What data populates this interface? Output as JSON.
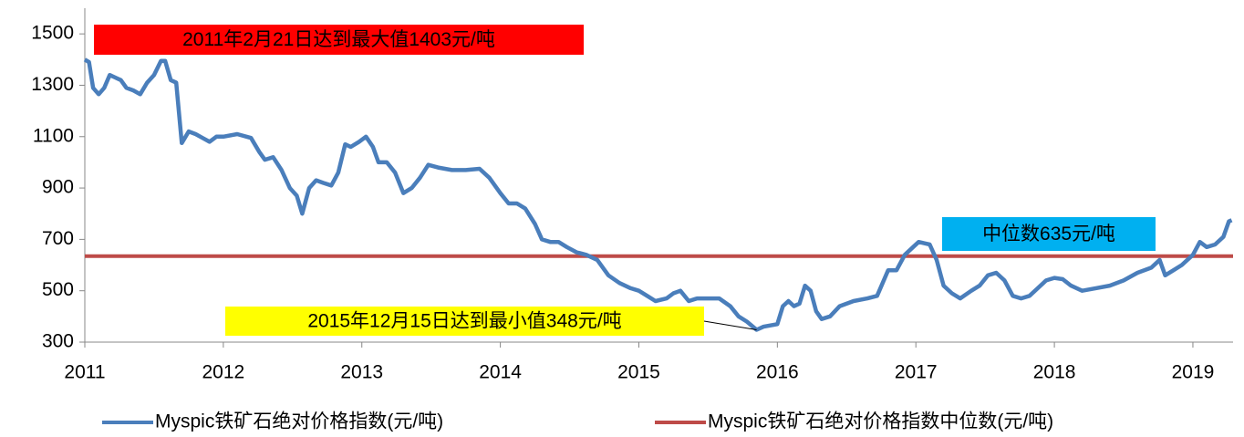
{
  "chart_data": {
    "type": "line",
    "x": [
      2011.0,
      2011.03,
      2011.06,
      2011.1,
      2011.14,
      2011.18,
      2011.22,
      2011.26,
      2011.3,
      2011.35,
      2011.4,
      2011.45,
      2011.5,
      2011.55,
      2011.58,
      2011.62,
      2011.66,
      2011.7,
      2011.75,
      2011.8,
      2011.85,
      2011.9,
      2011.95,
      2012.0,
      2012.1,
      2012.2,
      2012.26,
      2012.3,
      2012.36,
      2012.42,
      2012.48,
      2012.53,
      2012.57,
      2012.62,
      2012.67,
      2012.72,
      2012.78,
      2012.83,
      2012.88,
      2012.92,
      2012.98,
      2013.03,
      2013.08,
      2013.12,
      2013.18,
      2013.24,
      2013.3,
      2013.36,
      2013.42,
      2013.48,
      2013.55,
      2013.65,
      2013.75,
      2013.85,
      2013.92,
      2014.0,
      2014.06,
      2014.12,
      2014.18,
      2014.25,
      2014.3,
      2014.36,
      2014.42,
      2014.48,
      2014.55,
      2014.62,
      2014.7,
      2014.78,
      2014.86,
      2014.94,
      2015.0,
      2015.06,
      2015.12,
      2015.2,
      2015.25,
      2015.3,
      2015.36,
      2015.42,
      2015.5,
      2015.58,
      2015.66,
      2015.72,
      2015.78,
      2015.85,
      2015.9,
      2016.0,
      2016.04,
      2016.08,
      2016.12,
      2016.16,
      2016.2,
      2016.24,
      2016.28,
      2016.32,
      2016.38,
      2016.45,
      2016.55,
      2016.65,
      2016.72,
      2016.76,
      2016.8,
      2016.86,
      2016.92,
      2016.98,
      2017.02,
      2017.1,
      2017.15,
      2017.2,
      2017.26,
      2017.32,
      2017.4,
      2017.46,
      2017.52,
      2017.58,
      2017.64,
      2017.7,
      2017.76,
      2017.82,
      2017.88,
      2017.94,
      2018.0,
      2018.06,
      2018.12,
      2018.2,
      2018.3,
      2018.4,
      2018.5,
      2018.6,
      2018.7,
      2018.76,
      2018.8,
      2018.86,
      2018.92,
      2019.0,
      2019.05,
      2019.1,
      2019.16,
      2019.22,
      2019.26,
      2019.28
    ],
    "series": [
      {
        "name": "Myspic铁矿石绝对价格指数(元/吨)",
        "color": "#4a7ebb",
        "values": [
          1400,
          1390,
          1290,
          1265,
          1290,
          1340,
          1330,
          1320,
          1290,
          1280,
          1265,
          1310,
          1340,
          1395,
          1395,
          1320,
          1310,
          1075,
          1120,
          1110,
          1095,
          1080,
          1100,
          1100,
          1110,
          1095,
          1040,
          1010,
          1020,
          970,
          900,
          870,
          800,
          900,
          930,
          920,
          910,
          960,
          1070,
          1060,
          1080,
          1100,
          1060,
          1000,
          1000,
          960,
          880,
          900,
          940,
          990,
          980,
          970,
          970,
          975,
          940,
          880,
          840,
          840,
          820,
          760,
          700,
          690,
          690,
          670,
          650,
          640,
          620,
          560,
          530,
          510,
          500,
          480,
          460,
          470,
          490,
          500,
          460,
          470,
          470,
          470,
          440,
          400,
          380,
          348,
          360,
          370,
          440,
          460,
          440,
          450,
          520,
          500,
          420,
          390,
          400,
          440,
          460,
          470,
          480,
          530,
          580,
          580,
          640,
          670,
          690,
          680,
          620,
          520,
          490,
          470,
          500,
          520,
          560,
          570,
          540,
          480,
          470,
          480,
          510,
          540,
          550,
          545,
          520,
          500,
          510,
          520,
          540,
          570,
          590,
          620,
          560,
          580,
          600,
          640,
          690,
          670,
          680,
          710,
          770,
          775
        ]
      },
      {
        "name": "Myspic铁矿石绝对价格指数中位数(元/吨)",
        "color": "#be4b48",
        "x": [
          2011,
          2019.29
        ],
        "values": [
          635,
          635
        ]
      }
    ],
    "annotations": [
      {
        "text": "2011年2月21日达到最大值1403元/吨",
        "color": "#ff0000"
      },
      {
        "text": "2015年12月15日达到最小值348元/吨",
        "color": "#ffff00"
      },
      {
        "text": "中位数635元/吨",
        "color": "#00b0f0"
      }
    ],
    "xlim": [
      2011,
      2019.29
    ],
    "xticks": [
      2011,
      2012,
      2013,
      2014,
      2015,
      2016,
      2017,
      2018,
      2019
    ],
    "ylim": [
      300,
      1600
    ],
    "yticks": [
      300,
      500,
      700,
      900,
      1100,
      1300,
      1500
    ]
  }
}
